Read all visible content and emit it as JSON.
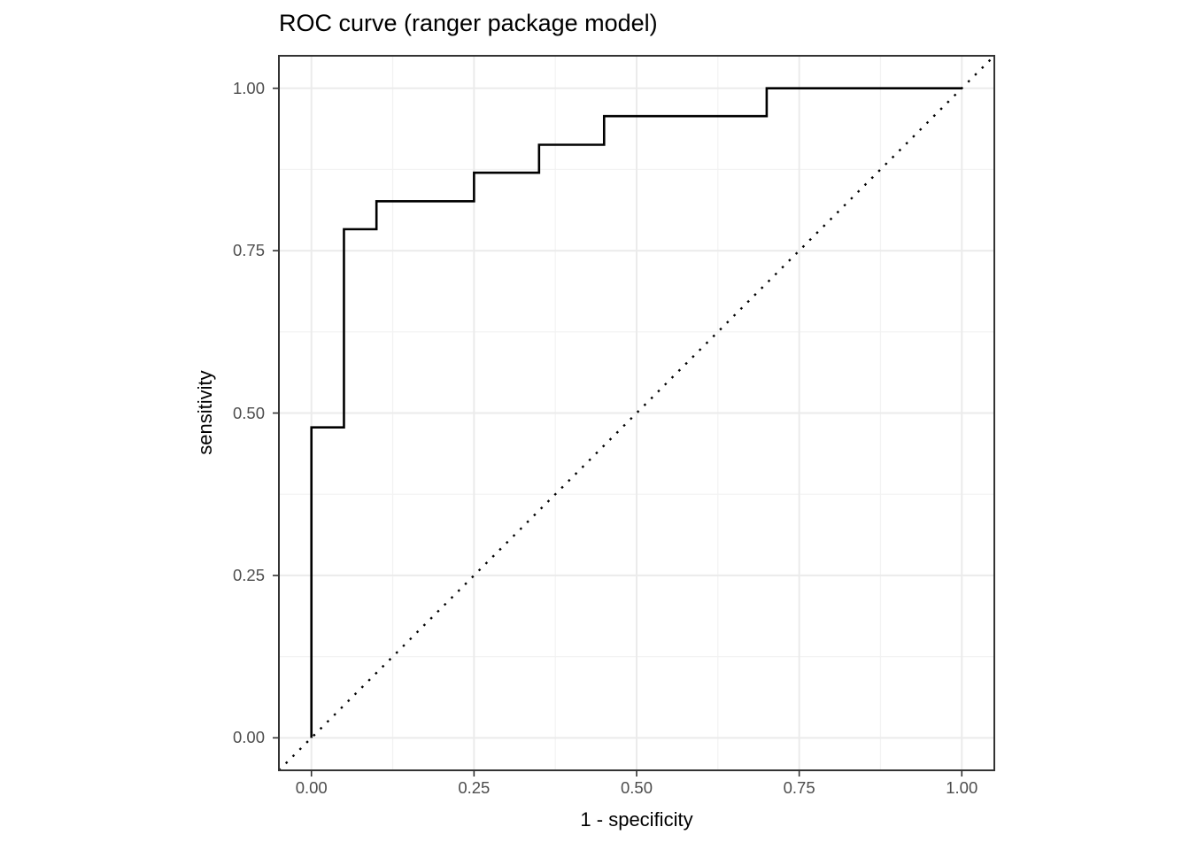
{
  "chart_data": {
    "type": "line",
    "title": "ROC curve (ranger package model)",
    "xlabel": "1 - specificity",
    "ylabel": "sensitivity",
    "xlim": [
      0,
      1
    ],
    "ylim": [
      0,
      1
    ],
    "grid": "on",
    "legend_position": "none",
    "x_ticks": [
      {
        "value": 0.0,
        "label": "0.00"
      },
      {
        "value": 0.25,
        "label": "0.25"
      },
      {
        "value": 0.5,
        "label": "0.50"
      },
      {
        "value": 0.75,
        "label": "0.75"
      },
      {
        "value": 1.0,
        "label": "1.00"
      }
    ],
    "y_ticks": [
      {
        "value": 0.0,
        "label": "0.00"
      },
      {
        "value": 0.25,
        "label": "0.25"
      },
      {
        "value": 0.5,
        "label": "0.50"
      },
      {
        "value": 0.75,
        "label": "0.75"
      },
      {
        "value": 1.0,
        "label": "1.00"
      }
    ],
    "x_minor_ticks": [
      0.125,
      0.375,
      0.625,
      0.875
    ],
    "y_minor_ticks": [
      0.125,
      0.375,
      0.625,
      0.875
    ],
    "series": [
      {
        "name": "ROC curve",
        "style": "step",
        "linetype": "solid",
        "color": "#000000",
        "path_points": [
          [
            0.0,
            0.0
          ],
          [
            0.0,
            0.478
          ],
          [
            0.05,
            0.478
          ],
          [
            0.05,
            0.783
          ],
          [
            0.1,
            0.783
          ],
          [
            0.1,
            0.826
          ],
          [
            0.25,
            0.826
          ],
          [
            0.25,
            0.87
          ],
          [
            0.35,
            0.87
          ],
          [
            0.35,
            0.913
          ],
          [
            0.45,
            0.913
          ],
          [
            0.45,
            0.957
          ],
          [
            0.7,
            0.957
          ],
          [
            0.7,
            1.0
          ],
          [
            1.0,
            1.0
          ]
        ]
      }
    ],
    "reference_line": {
      "name": "chance diagonal",
      "slope": 1,
      "intercept": 0,
      "linetype": "dotted",
      "color": "#000000"
    },
    "colors": {
      "background": "#ffffff",
      "panel_background": "#ffffff",
      "panel_border": "#333333",
      "grid_major": "#ebebeb",
      "grid_minor": "#f2f2f2",
      "tick_mark": "#333333",
      "tick_label": "#4d4d4d",
      "axis_title": "#000000",
      "title": "#000000"
    }
  }
}
